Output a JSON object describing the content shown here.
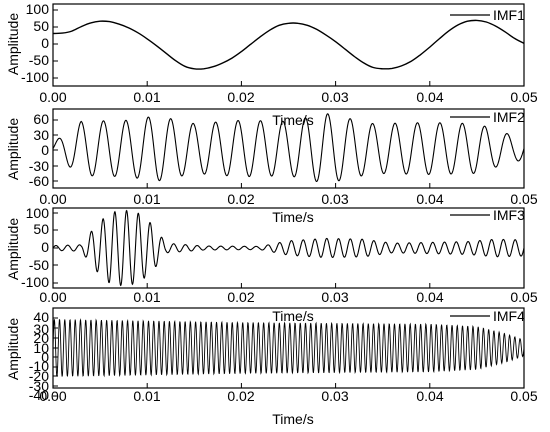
{
  "chart_data": [
    {
      "type": "line",
      "legend": "IMF1",
      "xlabel": "Time/s",
      "ylabel": "Amplitude",
      "xlim": [
        0,
        0.05
      ],
      "ylim": [
        -100,
        100
      ],
      "xticks": [
        "0.00",
        "0.01",
        "0.02",
        "0.03",
        "0.04",
        "0.05"
      ],
      "yticks": [
        "100",
        "50",
        "0",
        "-50",
        "-100"
      ],
      "grid": false,
      "legend_position": "top-right",
      "series": [
        {
          "x": [
            0,
            0.001,
            0.002,
            0.003,
            0.004,
            0.005,
            0.006,
            0.007,
            0.008,
            0.009,
            0.01,
            0.011,
            0.012,
            0.013,
            0.014,
            0.015,
            0.016,
            0.017,
            0.018,
            0.019,
            0.02,
            0.021,
            0.022,
            0.023,
            0.024,
            0.025,
            0.026,
            0.027,
            0.028,
            0.029,
            0.03,
            0.031,
            0.032,
            0.033,
            0.034,
            0.035,
            0.036,
            0.037,
            0.038,
            0.039,
            0.04,
            0.041,
            0.042,
            0.043,
            0.044,
            0.045,
            0.046,
            0.047,
            0.048,
            0.049,
            0.05
          ],
          "y": [
            28,
            29,
            34,
            45,
            54,
            58,
            57,
            51,
            42,
            30,
            15,
            -2,
            -20,
            -38,
            -52,
            -58,
            -58,
            -53,
            -44,
            -32,
            -16,
            2,
            20,
            36,
            48,
            53,
            53,
            48,
            38,
            24,
            8,
            -10,
            -28,
            -44,
            -55,
            -58,
            -57,
            -51,
            -40,
            -24,
            -5,
            15,
            34,
            49,
            58,
            60,
            56,
            46,
            32,
            16,
            4
          ]
        }
      ]
    },
    {
      "type": "line",
      "legend": "IMF2",
      "xlabel": "Time/s",
      "ylabel": "Amplitude",
      "xlim": [
        0,
        0.05
      ],
      "ylim": [
        -70,
        70
      ],
      "xticks": [
        "0.00",
        "0.01",
        "0.02",
        "0.03",
        "0.04",
        "0.05"
      ],
      "yticks": [
        "60",
        "30",
        "0",
        "-30",
        "-60"
      ],
      "grid": false,
      "legend_position": "top-right",
      "signal_description": {
        "component": "oscillation of roughly 420 Hz",
        "peak_amplitudes": [
          [
            0.0,
            10
          ],
          [
            0.003,
            48
          ],
          [
            0.008,
            50
          ],
          [
            0.011,
            58
          ],
          [
            0.015,
            44
          ],
          [
            0.02,
            50
          ],
          [
            0.025,
            48
          ],
          [
            0.029,
            62
          ],
          [
            0.034,
            44
          ],
          [
            0.04,
            46
          ],
          [
            0.045,
            44
          ],
          [
            0.049,
            22
          ]
        ]
      }
    },
    {
      "type": "line",
      "legend": "IMF3",
      "xlabel": "Time/s",
      "ylabel": "Amplitude",
      "xlim": [
        0,
        0.05
      ],
      "ylim": [
        -100,
        100
      ],
      "xticks": [
        "0.00",
        "0.01",
        "0.02",
        "0.03",
        "0.04",
        "0.05"
      ],
      "yticks": [
        "100",
        "50",
        "0",
        "-50",
        "-100"
      ],
      "grid": false,
      "legend_position": "top-right",
      "signal_description": {
        "component": "oscillation of roughly 800 Hz",
        "peak_amplitudes": [
          [
            0.0,
            6
          ],
          [
            0.003,
            8
          ],
          [
            0.0045,
            55
          ],
          [
            0.006,
            88
          ],
          [
            0.0075,
            95
          ],
          [
            0.009,
            88
          ],
          [
            0.0105,
            60
          ],
          [
            0.012,
            12
          ],
          [
            0.016,
            5
          ],
          [
            0.022,
            4
          ],
          [
            0.025,
            18
          ],
          [
            0.029,
            24
          ],
          [
            0.033,
            22
          ],
          [
            0.036,
            12
          ],
          [
            0.04,
            14
          ],
          [
            0.044,
            16
          ],
          [
            0.047,
            22
          ],
          [
            0.05,
            20
          ]
        ]
      }
    },
    {
      "type": "line",
      "legend": "IMF4",
      "xlabel": "Time/s",
      "ylabel": "Amplitude",
      "xlim": [
        0,
        0.05
      ],
      "ylim": [
        -50,
        50
      ],
      "xticks": [
        "0.00",
        "0.01",
        "0.02",
        "0.03",
        "0.04",
        "0.05"
      ],
      "yticks": [
        "40",
        "30",
        "20",
        "10",
        "0",
        "-10",
        "-20",
        "-30",
        "-40"
      ],
      "grid": false,
      "legend_position": "top-right",
      "signal_description": {
        "component": "oscillation of roughly 1800 Hz",
        "peak_amplitudes": [
          [
            0.0,
            36
          ],
          [
            0.01,
            34
          ],
          [
            0.02,
            32
          ],
          [
            0.03,
            31
          ],
          [
            0.04,
            30
          ],
          [
            0.045,
            27
          ],
          [
            0.048,
            18
          ],
          [
            0.05,
            10
          ]
        ]
      }
    }
  ],
  "panels": [
    {
      "id": "imf1",
      "legend": "IMF1",
      "ylabel": "Amplitude",
      "xlabel": "Time/s",
      "yticks": [
        "100",
        "50",
        "0",
        "-50",
        "-100"
      ],
      "xticks": [
        "0.00",
        "0.01",
        "0.02",
        "0.03",
        "0.04",
        "0.05"
      ]
    },
    {
      "id": "imf2",
      "legend": "IMF2",
      "ylabel": "Amplitude",
      "xlabel": "Time/s",
      "yticks": [
        "60",
        "30",
        "0",
        "-30",
        "-60"
      ],
      "xticks": [
        "0.00",
        "0.01",
        "0.02",
        "0.03",
        "0.04",
        "0.05"
      ]
    },
    {
      "id": "imf3",
      "legend": "IMF3",
      "ylabel": "Amplitude",
      "xlabel": "Time/s",
      "yticks": [
        "100",
        "50",
        "0",
        "-50",
        "-100"
      ],
      "xticks": [
        "0.00",
        "0.01",
        "0.02",
        "0.03",
        "0.04",
        "0.05"
      ]
    },
    {
      "id": "imf4",
      "legend": "IMF4",
      "ylabel": "Amplitude",
      "xlabel": "Time/s",
      "yticks": [
        "40",
        "30",
        "20",
        "10",
        "0",
        "-10",
        "-20",
        "-30",
        "-40"
      ],
      "xticks": [
        "0.00",
        "0.01",
        "0.02",
        "0.03",
        "0.04",
        "0.05"
      ]
    }
  ],
  "colors": {
    "line": "#000000",
    "axis": "#000000",
    "background": "#ffffff"
  }
}
